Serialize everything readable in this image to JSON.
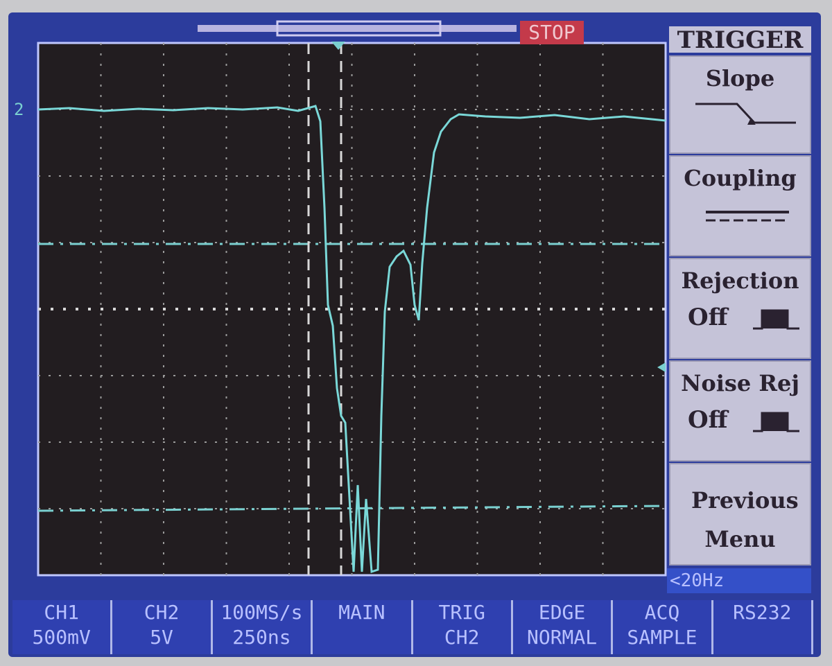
{
  "status": "STOP",
  "channel_marker": "2",
  "menu": {
    "title": "TRIGGER",
    "items": [
      {
        "label": "Slope"
      },
      {
        "label": "Coupling"
      },
      {
        "label": "Rejection",
        "value": "Off"
      },
      {
        "label": "Noise Rej",
        "value": "Off"
      },
      {
        "label": "Previous Menu"
      }
    ]
  },
  "trigger_frequency": "<20Hz",
  "status_bar": [
    [
      "CH1",
      "500mV"
    ],
    [
      "CH2",
      "5V"
    ],
    [
      "100MS/s",
      "250ns"
    ],
    [
      "MAIN"
    ],
    [
      "TRIG",
      "CH2"
    ],
    [
      "EDGE",
      "NORMAL"
    ],
    [
      "ACQ",
      "SAMPLE"
    ],
    [
      "RS232"
    ]
  ]
}
